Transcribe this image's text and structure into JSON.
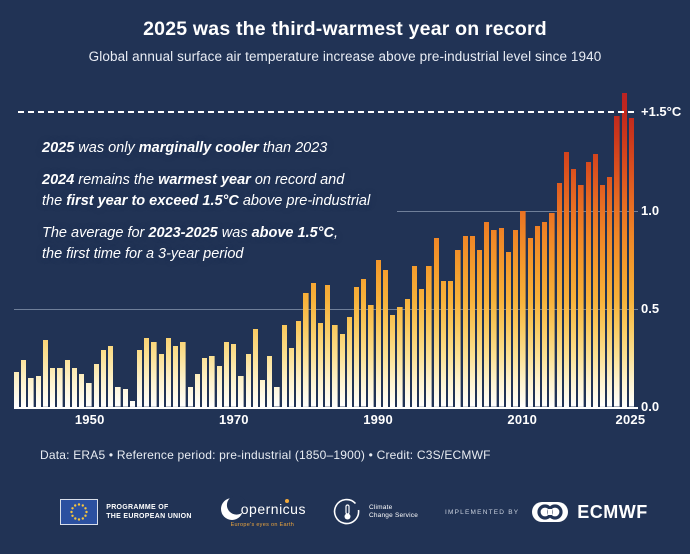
{
  "header": {
    "title": "2025 was the third-warmest year on record",
    "subtitle": "Global annual surface air temperature increase above pre-industrial level since 1940"
  },
  "annotations": {
    "lines": [
      {
        "text": "**2025** was only **marginally cooler** than 2023",
        "gap_before": false
      },
      {
        "text": "**2024** remains the **warmest year** on record and",
        "gap_before": true
      },
      {
        "text": "the **first year to exceed 1.5°C** above pre-industrial",
        "gap_before": false
      },
      {
        "text": "The average for **2023-2025** was **above 1.5°C**,",
        "gap_before": true
      },
      {
        "text": "the first time for a 3-year period",
        "gap_before": false
      }
    ]
  },
  "chart_data": {
    "type": "bar",
    "title": "Global annual surface air temperature increase above pre-industrial level since 1940",
    "unit": "°C above pre-industrial (1850–1900)",
    "ylim": [
      0,
      1.64
    ],
    "grid": "horizontal",
    "legend": "none",
    "threshold_line": {
      "value": 1.5,
      "label": "+1.5°C",
      "style": "dashed-white"
    },
    "yticks": [
      {
        "value": 0.0,
        "label": "0.0"
      },
      {
        "value": 0.5,
        "label": "0.5"
      },
      {
        "value": 1.0,
        "label": "1.0"
      },
      {
        "value": 1.5,
        "label": "+1.5°C"
      }
    ],
    "xticks": [
      1950,
      1970,
      1990,
      2010,
      2025
    ],
    "x": [
      1940,
      1941,
      1942,
      1943,
      1944,
      1945,
      1946,
      1947,
      1948,
      1949,
      1950,
      1951,
      1952,
      1953,
      1954,
      1955,
      1956,
      1957,
      1958,
      1959,
      1960,
      1961,
      1962,
      1963,
      1964,
      1965,
      1966,
      1967,
      1968,
      1969,
      1970,
      1971,
      1972,
      1973,
      1974,
      1975,
      1976,
      1977,
      1978,
      1979,
      1980,
      1981,
      1982,
      1983,
      1984,
      1985,
      1986,
      1987,
      1988,
      1989,
      1990,
      1991,
      1992,
      1993,
      1994,
      1995,
      1996,
      1997,
      1998,
      1999,
      2000,
      2001,
      2002,
      2003,
      2004,
      2005,
      2006,
      2007,
      2008,
      2009,
      2010,
      2011,
      2012,
      2013,
      2014,
      2015,
      2016,
      2017,
      2018,
      2019,
      2020,
      2021,
      2022,
      2023,
      2024,
      2025
    ],
    "values": [
      0.18,
      0.24,
      0.15,
      0.16,
      0.34,
      0.2,
      0.2,
      0.24,
      0.2,
      0.17,
      0.12,
      0.22,
      0.29,
      0.31,
      0.1,
      0.09,
      0.03,
      0.29,
      0.35,
      0.33,
      0.27,
      0.35,
      0.31,
      0.33,
      0.1,
      0.17,
      0.25,
      0.26,
      0.21,
      0.33,
      0.32,
      0.16,
      0.27,
      0.4,
      0.14,
      0.26,
      0.1,
      0.42,
      0.3,
      0.44,
      0.58,
      0.63,
      0.43,
      0.62,
      0.42,
      0.37,
      0.46,
      0.61,
      0.65,
      0.52,
      0.75,
      0.7,
      0.47,
      0.51,
      0.55,
      0.72,
      0.6,
      0.72,
      0.86,
      0.64,
      0.64,
      0.8,
      0.87,
      0.87,
      0.8,
      0.94,
      0.9,
      0.91,
      0.79,
      0.9,
      1.0,
      0.86,
      0.92,
      0.94,
      0.99,
      1.14,
      1.3,
      1.21,
      1.13,
      1.25,
      1.29,
      1.13,
      1.17,
      1.48,
      1.6,
      1.47
    ],
    "colors": {
      "background": "#213355",
      "gradient_low": "#ffffff",
      "gradient_mid": "#f7b23b",
      "gradient_high": "#b82125",
      "gridline": "#b0bdd1",
      "threshold": "#ffffff"
    }
  },
  "footer": {
    "source_line": "Data: ERA5 • Reference period: pre-industrial (1850–1900) • Credit: C3S/ECMWF"
  },
  "logos": {
    "eu": {
      "line1": "PROGRAMME OF",
      "line2": "THE EUROPEAN UNION"
    },
    "copernicus": {
      "name": "opernicus",
      "tagline": "Europe's eyes on Earth"
    },
    "c3s": {
      "line1": "Climate",
      "line2": "Change Service"
    },
    "implemented_by": "IMPLEMENTED BY",
    "ecmwf": "ECMWF"
  }
}
